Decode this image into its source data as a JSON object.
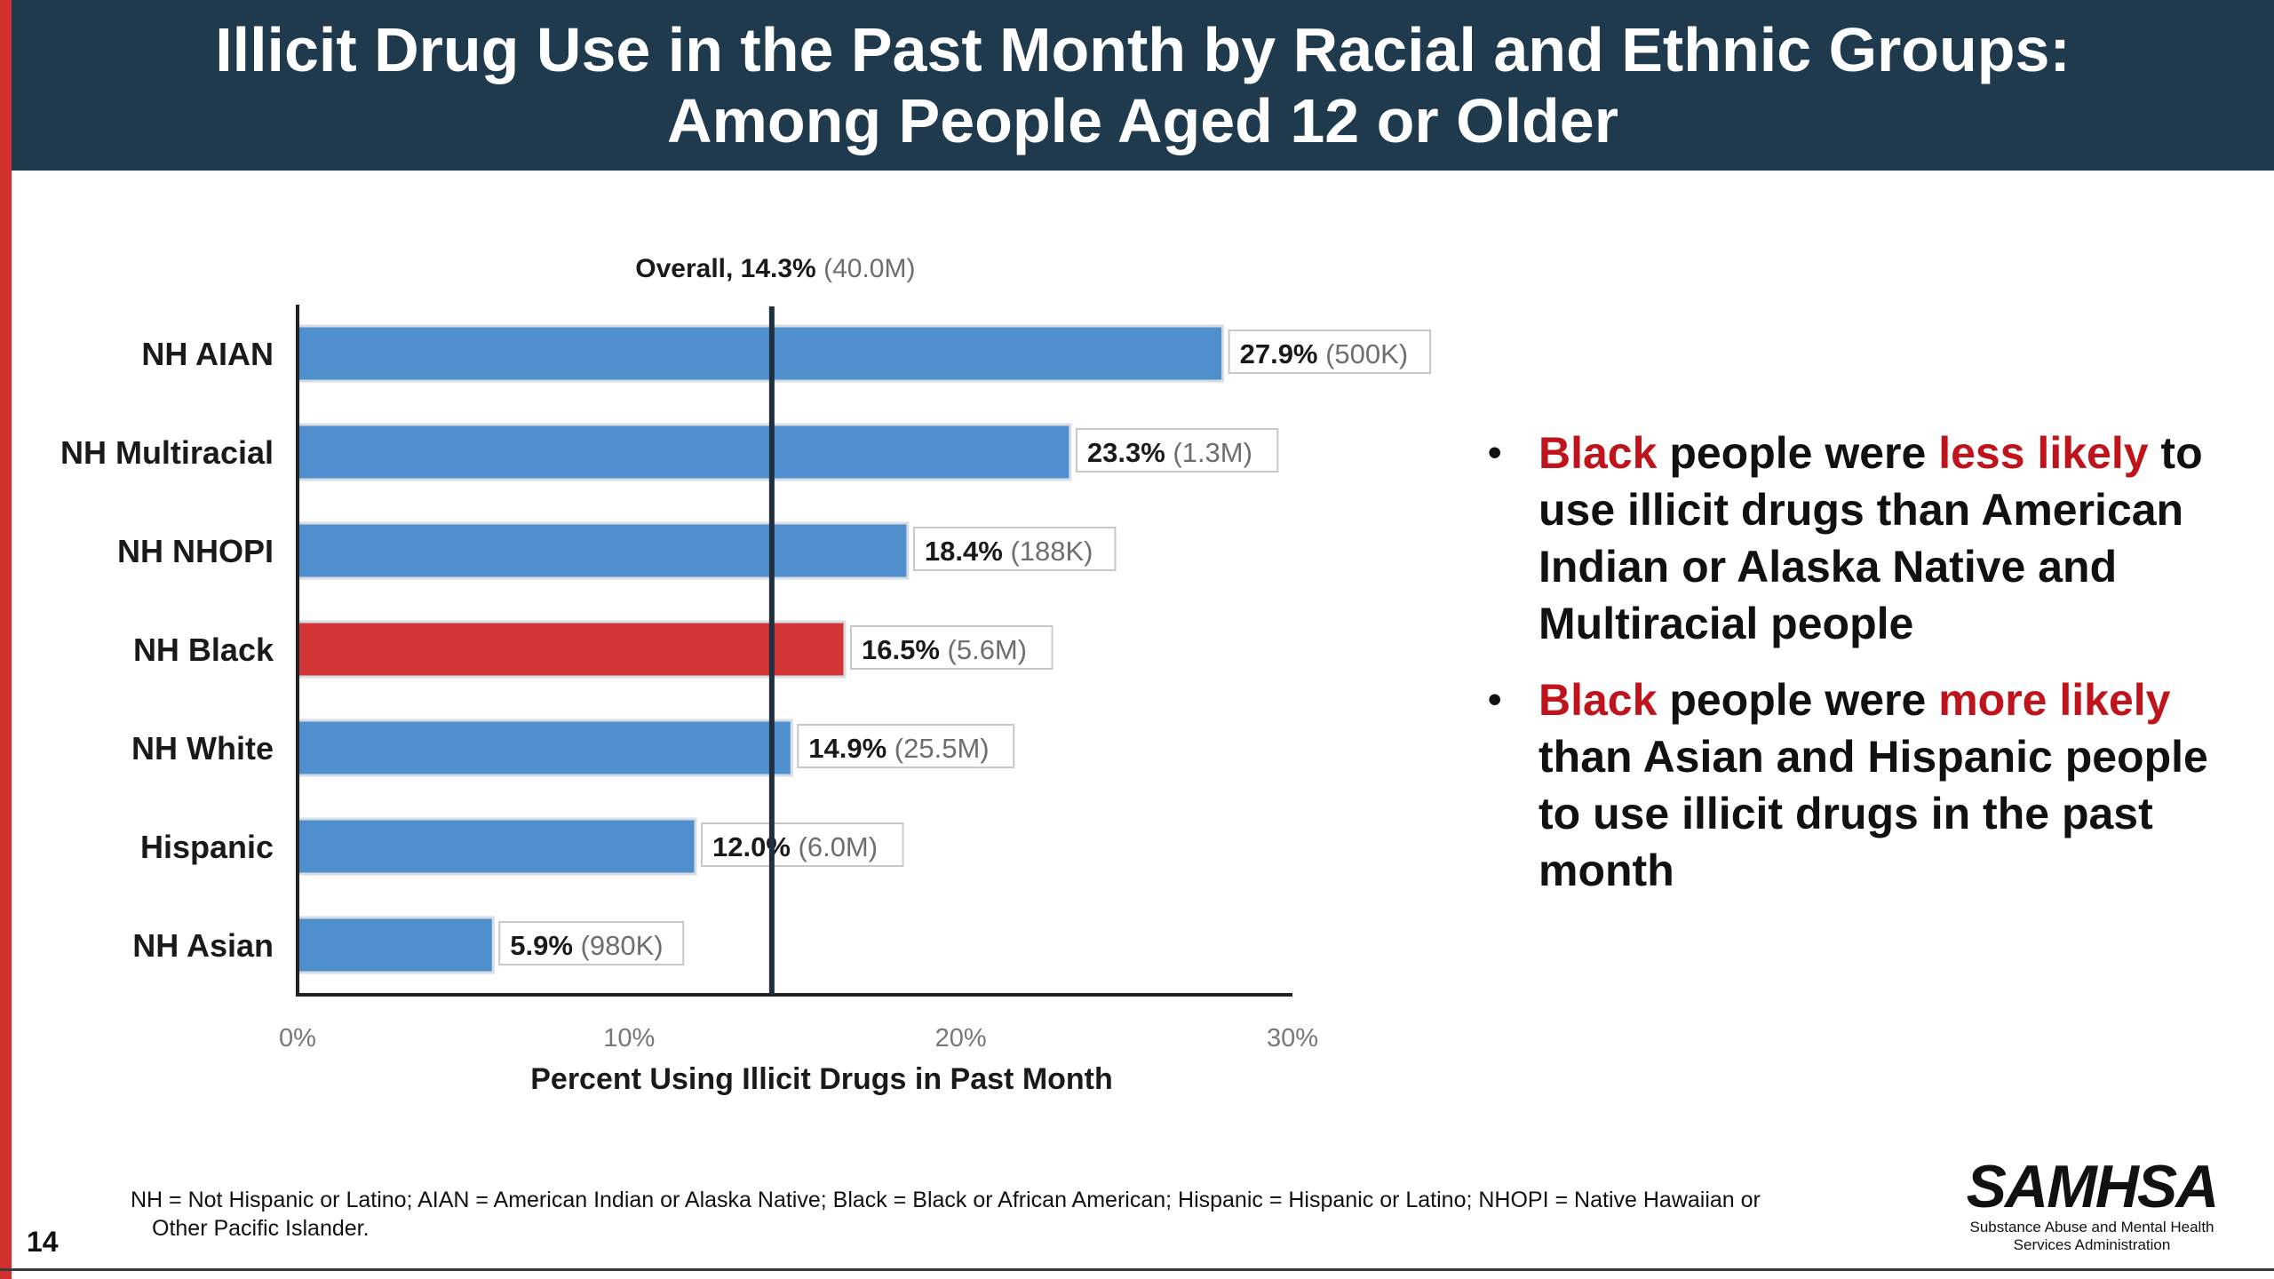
{
  "title": {
    "line1": "Illicit Drug Use in the Past Month by Racial and Ethnic Groups:",
    "line2": "Among People Aged 12 or Older"
  },
  "colors": {
    "bar_default": "#4f8fcd",
    "bar_highlight": "#d23637",
    "title_bg": "#1f3a4d",
    "accent_red": "#c0141c"
  },
  "chart_data": {
    "type": "bar",
    "orientation": "horizontal",
    "categories": [
      "NH AIAN",
      "NH Multiracial",
      "NH NHOPI",
      "NH Black",
      "NH White",
      "Hispanic",
      "NH Asian"
    ],
    "values": [
      27.9,
      23.3,
      18.4,
      16.5,
      14.9,
      12.0,
      5.9
    ],
    "value_labels": [
      "27.9%",
      "23.3%",
      "18.4%",
      "16.5%",
      "14.9%",
      "12.0%",
      "5.9%"
    ],
    "counts": [
      "(500K)",
      "(1.3M)",
      "(188K)",
      "(5.6M)",
      "(25.5M)",
      "(6.0M)",
      "(980K)"
    ],
    "highlight": "NH Black",
    "xlabel": "Percent Using Illicit Drugs in Past Month",
    "ylabel": "",
    "xlim": [
      0,
      30
    ],
    "xticks": [
      0,
      10,
      20,
      30
    ],
    "xtick_labels": [
      "0%",
      "10%",
      "20%",
      "30%"
    ],
    "reference_line": {
      "value": 14.3,
      "label": "Overall, 14.3%",
      "count": "(40.0M)"
    },
    "grid": false,
    "legend": "none"
  },
  "bullets": [
    {
      "parts": [
        {
          "text": "Black",
          "red": true
        },
        {
          "text": " people were ",
          "red": false
        },
        {
          "text": "less likely",
          "red": true
        },
        {
          "text": " to use illicit drugs than American Indian or Alaska Native and Multiracial people",
          "red": false
        }
      ]
    },
    {
      "parts": [
        {
          "text": "Black",
          "red": true
        },
        {
          "text": " people were ",
          "red": false
        },
        {
          "text": "more likely",
          "red": true
        },
        {
          "text": " than Asian and Hispanic people to use illicit drugs in the past month",
          "red": false
        }
      ]
    }
  ],
  "footnote": {
    "line1": "NH = Not Hispanic or Latino; AIAN = American Indian or Alaska Native; Black = Black or African American; Hispanic = Hispanic or Latino; NHOPI = Native Hawaiian or",
    "line2": "Other Pacific Islander."
  },
  "slide_number": "14",
  "logo": {
    "name": "SAMHSA",
    "sub_line1": "Substance Abuse and Mental Health",
    "sub_line2": "Services Administration"
  }
}
